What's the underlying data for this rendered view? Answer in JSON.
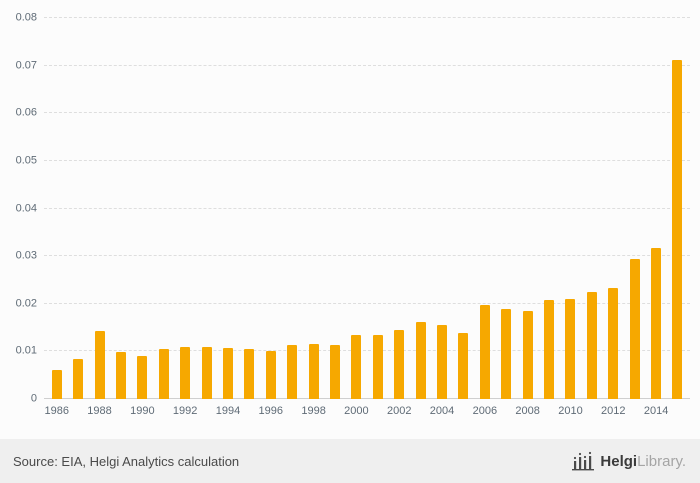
{
  "chart_data": {
    "type": "bar",
    "title": "",
    "categories": [
      "1986",
      "1987",
      "1988",
      "1989",
      "1990",
      "1991",
      "1992",
      "1993",
      "1994",
      "1995",
      "1996",
      "1997",
      "1998",
      "1999",
      "2000",
      "2001",
      "2002",
      "2003",
      "2004",
      "2005",
      "2006",
      "2007",
      "2008",
      "2009",
      "2010",
      "2011",
      "2012",
      "2013",
      "2014",
      "2015"
    ],
    "values": [
      0.006,
      0.0085,
      0.0143,
      0.0098,
      0.0091,
      0.0106,
      0.011,
      0.011,
      0.0108,
      0.0106,
      0.01,
      0.0114,
      0.0116,
      0.0114,
      0.0135,
      0.0135,
      0.0145,
      0.0162,
      0.0156,
      0.0139,
      0.0197,
      0.0189,
      0.0185,
      0.0208,
      0.021,
      0.0224,
      0.0233,
      0.0295,
      0.0318,
      0.0711
    ],
    "xtick_labels": [
      "1986",
      "1988",
      "1990",
      "1992",
      "1994",
      "1996",
      "1998",
      "2000",
      "2002",
      "2004",
      "2006",
      "2008",
      "2010",
      "2012",
      "2014"
    ],
    "yticks": [
      {
        "value": 0,
        "label": "0"
      },
      {
        "value": 0.01,
        "label": "0.01"
      },
      {
        "value": 0.02,
        "label": "0.02"
      },
      {
        "value": 0.03,
        "label": "0.03"
      },
      {
        "value": 0.04,
        "label": "0.04"
      },
      {
        "value": 0.05,
        "label": "0.05"
      },
      {
        "value": 0.06,
        "label": "0.06"
      },
      {
        "value": 0.07,
        "label": "0.07"
      },
      {
        "value": 0.08,
        "label": "0.08"
      }
    ],
    "ylim": [
      0,
      0.08
    ],
    "bar_color": "#F6A800",
    "grid": "dashed-horizontal",
    "legend": "none",
    "xlabel": "",
    "ylabel": ""
  },
  "footer": {
    "source_text": "Source: EIA, Helgi Analytics calculation",
    "brand_bold": "Helgi",
    "brand_light": "Library."
  }
}
